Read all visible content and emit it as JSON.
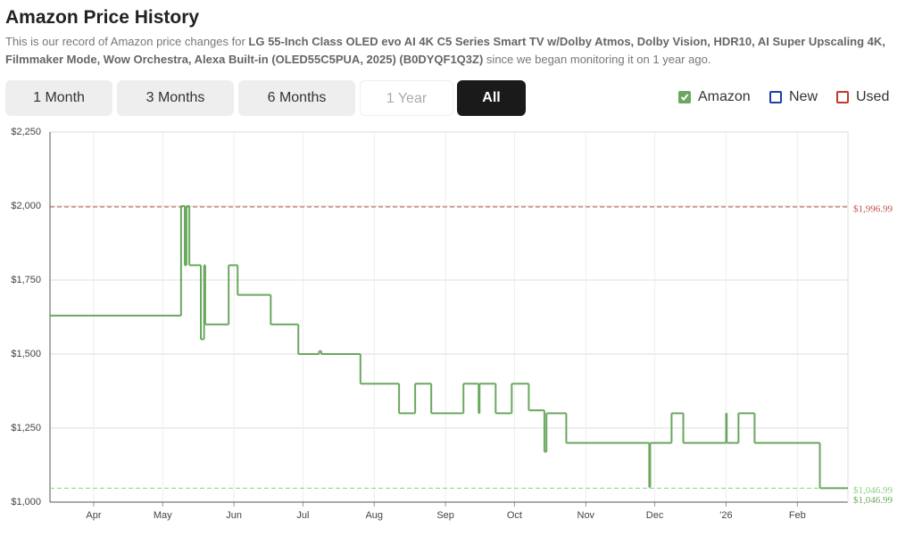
{
  "header": {
    "title": "Amazon Price History",
    "description": {
      "before": "This is our record of Amazon price changes for ",
      "product": "LG 55-Inch Class OLED evo AI 4K C5 Series Smart TV w/Dolby Atmos, Dolby Vision, HDR10, AI Super Upscaling 4K, Filmmaker Mode, Wow Orchestra, Alexa Built-in (OLED55C5PUA, 2025) (B0DYQF1Q3Z)",
      "after": " since we began monitoring it on 1 year ago."
    }
  },
  "ranges": {
    "buttons": [
      "1 Month",
      "3 Months",
      "6 Months",
      "1 Year",
      "All"
    ],
    "active": 4,
    "disabled": 3
  },
  "legend_items": [
    {
      "name": "Amazon",
      "color": "#6aa85f",
      "checked": true
    },
    {
      "name": "New",
      "color": "#1f3fa8",
      "checked": false
    },
    {
      "name": "Used",
      "color": "#c0392b",
      "checked": false
    }
  ],
  "chart_data": {
    "type": "step",
    "x": [
      71,
      128,
      129.6,
      130.4,
      131.6,
      136.6,
      138,
      138.5,
      148.7,
      152.6,
      167,
      179,
      188,
      189,
      206,
      222.8,
      229.8,
      236.8,
      250.8,
      257.4,
      257.8,
      264.8,
      271.8,
      279.2,
      286,
      286.9,
      295.5,
      331.6,
      332,
      341.3,
      346.4,
      365,
      365.3,
      370.4,
      377.4,
      405.8,
      418
    ],
    "series": [
      {
        "name": "Amazon",
        "color": "#6aa85f",
        "values": [
          1630,
          2000,
          1800,
          2000,
          1800,
          1550,
          1800,
          1600,
          1800,
          1700,
          1600,
          1500,
          1510,
          1500,
          1400,
          1300,
          1400,
          1300,
          1400,
          1300,
          1400,
          1300,
          1400,
          1310,
          1170,
          1300,
          1200,
          1050,
          1200,
          1300,
          1200,
          1300,
          1200,
          1300,
          1200,
          1046.99,
          1046.99
        ]
      }
    ],
    "xlim": [
      71,
      418
    ],
    "xticks": [
      {
        "value": 90,
        "label": "Apr"
      },
      {
        "value": 120,
        "label": "May"
      },
      {
        "value": 151,
        "label": "Jun"
      },
      {
        "value": 181,
        "label": "Jul"
      },
      {
        "value": 212,
        "label": "Aug"
      },
      {
        "value": 243,
        "label": "Sep"
      },
      {
        "value": 273,
        "label": "Oct"
      },
      {
        "value": 304,
        "label": "Nov"
      },
      {
        "value": 334,
        "label": "Dec"
      },
      {
        "value": 365,
        "label": "'26"
      },
      {
        "value": 396,
        "label": "Feb"
      }
    ],
    "ylim": [
      1000,
      2250
    ],
    "yticks": [
      {
        "value": 1000,
        "label": "$1,000"
      },
      {
        "value": 1250,
        "label": "$1,250"
      },
      {
        "value": 1500,
        "label": "$1,500"
      },
      {
        "value": 1750,
        "label": "$1,750"
      },
      {
        "value": 2000,
        "label": "$2,000"
      },
      {
        "value": 2250,
        "label": "$2,250"
      }
    ],
    "grid": true,
    "reference_lines": [
      {
        "value": 1996.99,
        "label": "$1,996.99",
        "color": "#c0504d"
      },
      {
        "value": 1046.99,
        "label": "$1,046.99",
        "color": "#8fcf85"
      }
    ],
    "last_price": {
      "value": 1046.99,
      "label": "$1,046.99",
      "color": "#6aa85f"
    }
  }
}
